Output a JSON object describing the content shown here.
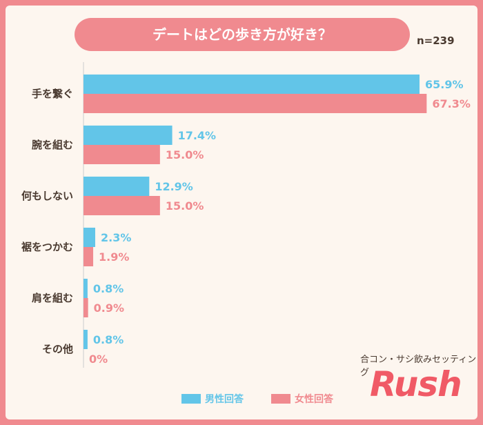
{
  "title": "デートはどの歩き方が好き？",
  "sample_size": "n=239",
  "tagline": "合コン・サシ飲みセッティング",
  "logo_text": "Rush",
  "colors": {
    "male": "#62c5e8",
    "female": "#f08a8f"
  },
  "chart_data": {
    "type": "bar",
    "orientation": "horizontal",
    "categories": [
      "手を繋ぐ",
      "腕を組む",
      "何もしない",
      "裾をつかむ",
      "肩を組む",
      "その他"
    ],
    "series": [
      {
        "name": "男性回答",
        "values": [
          65.9,
          17.4,
          12.9,
          2.3,
          0.8,
          0.8
        ],
        "labels": [
          "65.9%",
          "17.4%",
          "12.9%",
          "2.3%",
          "0.8%",
          "0.8%"
        ]
      },
      {
        "name": "女性回答",
        "values": [
          67.3,
          15.0,
          15.0,
          1.9,
          0.9,
          0
        ],
        "labels": [
          "67.3%",
          "15.0%",
          "15.0%",
          "1.9%",
          "0.9%",
          "0%"
        ]
      }
    ],
    "xlim": [
      0,
      100
    ],
    "grid": false,
    "legend": "bottom"
  }
}
